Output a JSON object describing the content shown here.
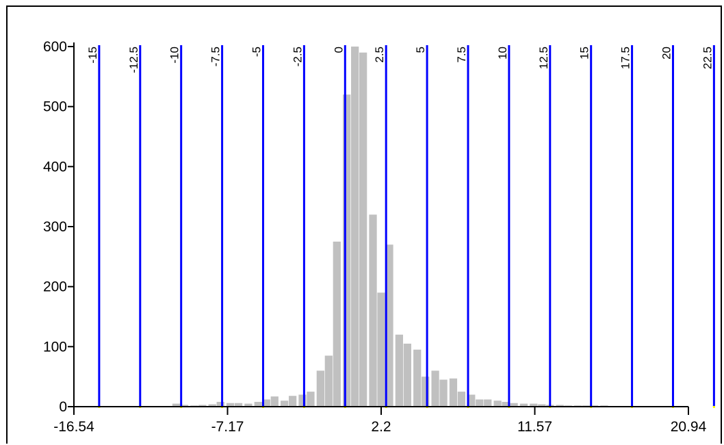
{
  "chart_data": {
    "type": "bar",
    "title": "",
    "xlabel": "",
    "ylabel": "",
    "xlim": [
      -16.54,
      20.94
    ],
    "ylim": [
      0,
      600
    ],
    "x_ticks": [
      "-16.54",
      "-7.17",
      "2.2",
      "11.57",
      "20.94"
    ],
    "y_ticks": [
      "0",
      "100",
      "200",
      "300",
      "400",
      "500",
      "600"
    ],
    "bin_boundaries": [
      "-15",
      "-12.5",
      "-10",
      "-7.5",
      "-5",
      "-2.5",
      "0",
      "2.5",
      "5",
      "7.5",
      "10",
      "12.5",
      "15",
      "17.5",
      "20",
      "22.5"
    ],
    "colors": {
      "bars": "#c0c0c0",
      "boundaries": "#0000ff",
      "axis": "#000000",
      "markers": "#ffff00"
    },
    "bar_width": 0.47,
    "series": [
      {
        "x": [
          -10.3,
          -9.8,
          -9.2,
          -8.7,
          -8.1,
          -7.6,
          -7.0,
          -6.5,
          -5.9,
          -5.3,
          -4.8,
          -4.3,
          -3.7,
          -3.2,
          -2.6,
          -2.1,
          -1.5,
          -1.0,
          -0.5,
          0.1,
          0.6,
          1.1,
          1.7,
          2.2,
          2.7,
          3.3,
          3.8,
          4.4,
          4.9,
          5.5,
          6.0,
          6.6,
          7.1,
          7.7,
          8.2,
          8.7,
          9.3,
          9.8,
          10.3,
          10.9,
          11.5,
          12.0,
          12.5,
          13.1,
          13.6,
          14.2,
          14.7,
          15.2,
          15.8,
          16.3,
          16.9,
          17.4
        ],
        "values": [
          5,
          3,
          2,
          3,
          4,
          8,
          6,
          6,
          5,
          8,
          12,
          17,
          10,
          18,
          20,
          25,
          60,
          85,
          275,
          520,
          600,
          590,
          320,
          190,
          270,
          120,
          105,
          95,
          50,
          60,
          45,
          47,
          25,
          20,
          12,
          12,
          10,
          8,
          6,
          5,
          5,
          4,
          3,
          3,
          2,
          2,
          2,
          2,
          2,
          1,
          1,
          1
        ]
      }
    ]
  }
}
